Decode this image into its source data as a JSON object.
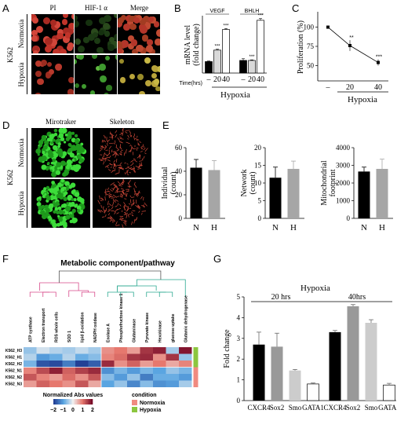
{
  "panels": {
    "A": {
      "letter": "A",
      "col_labels": [
        "PI",
        "HIF-1 α",
        "Merge"
      ],
      "row_labels": [
        "Normoxia",
        "Hypoxia"
      ],
      "group_label": "K562"
    },
    "B": {
      "letter": "B",
      "ylabel": "mRNA level\n(fold change)",
      "ylabel_line1": "mRNA level",
      "ylabel_line2": "(fold change)",
      "group_titles": [
        "VEGF",
        "BHLH"
      ],
      "x_prefix": "Time(hrs)",
      "x_ticks": [
        "–",
        "20",
        "40",
        "–",
        "20",
        "40"
      ],
      "bracket_label": "Hypoxia",
      "star": "***"
    },
    "C": {
      "letter": "C",
      "ylabel": "Proliferation (%)",
      "yticks": [
        "100",
        "75",
        "50"
      ],
      "x_ticks": [
        "–",
        "20",
        "40"
      ],
      "bracket_label": "Hypoxia",
      "stars": [
        "**",
        "***"
      ]
    },
    "D": {
      "letter": "D",
      "col_labels": [
        "Mirotraker",
        "Skeleton"
      ],
      "row_labels": [
        "Normoxia",
        "Hypoxia"
      ],
      "group_label": "K562"
    },
    "E": {
      "letter": "E",
      "subplots": [
        {
          "ylabel": "Individual\n(count)",
          "ylabel_line1": "Individual",
          "ylabel_line2": "(count)",
          "yticks": [
            "0",
            "20",
            "40",
            "60"
          ],
          "x_ticks": [
            "N",
            "H"
          ]
        },
        {
          "ylabel": "Network\n(count)",
          "ylabel_line1": "Network",
          "ylabel_line2": "(count)",
          "yticks": [
            "0",
            "5",
            "10",
            "15",
            "20"
          ],
          "x_ticks": [
            "N",
            "H"
          ]
        },
        {
          "ylabel": "Mitochondrial\nfootprint",
          "ylabel_line1": "Mitochondrial",
          "ylabel_line2": "footprint",
          "yticks": [
            "0",
            "1000",
            "2000",
            "3000",
            "4000"
          ],
          "x_ticks": [
            "N",
            "H"
          ]
        }
      ]
    },
    "F": {
      "letter": "F",
      "title": "Metabolic component/pathway",
      "columns": [
        "ATP synthase",
        "Electron transport",
        "ROS whole cells",
        "SOD 1",
        "lipid β-oxidation",
        "NADPH oxidase",
        "Enolase A",
        "Phosphofructose kinase 1",
        "Glutaminase",
        "Pyruvate kinase",
        "Hexokinase",
        "glucose uptake",
        "Glutamic dehydrogenase"
      ],
      "rows": [
        "K562_H3",
        "K562_H1",
        "K562_H2",
        "K562_N1",
        "K562_N2",
        "K562_N3"
      ],
      "legend_title": "Normalized Abs values",
      "legend_ticks": [
        "−2",
        "−1",
        "0",
        "1",
        "2"
      ],
      "condition_title": "condition",
      "conditions": [
        {
          "name": "Normoxia",
          "color": "#f08a80"
        },
        {
          "name": "Hypoxia",
          "color": "#8cc63f"
        }
      ]
    },
    "G": {
      "letter": "G",
      "title": "Hypoxia",
      "group_labels": [
        "20 hrs",
        "40hrs"
      ],
      "ylabel": "Fold change",
      "yticks": [
        "0",
        "1",
        "2",
        "3",
        "4",
        "5"
      ],
      "x_ticks": [
        "CXCR4",
        "Sox2",
        "Smo",
        "GATA1",
        "CXCR4",
        "Sox2",
        "Smo",
        "GATA1"
      ]
    }
  },
  "chart_data": [
    {
      "panel": "B",
      "type": "bar",
      "title": "",
      "ylabel": "mRNA level (fold change)",
      "categories": [
        "VEGF –",
        "VEGF 20",
        "VEGF 40",
        "BHLH –",
        "BHLH 20",
        "BHLH 40"
      ],
      "values": [
        1.0,
        2.0,
        3.8,
        1.1,
        1.1,
        4.6
      ],
      "errors": [
        0.05,
        0.08,
        0.08,
        0.15,
        0.05,
        0.15
      ],
      "colors": [
        "#000000",
        "#d9d9d9",
        "#ffffff",
        "#000000",
        "#d9d9d9",
        "#ffffff"
      ],
      "ylim": [
        0,
        5
      ]
    },
    {
      "panel": "C",
      "type": "line",
      "title": "",
      "ylabel": "Proliferation (%)",
      "x": [
        "–",
        "20",
        "40"
      ],
      "values": [
        100,
        76,
        54
      ],
      "errors": [
        0,
        7,
        4
      ],
      "ylim": [
        30,
        120
      ]
    },
    {
      "panel": "E1",
      "type": "bar",
      "ylabel": "Individual (count)",
      "categories": [
        "N",
        "H"
      ],
      "values": [
        43,
        41
      ],
      "errors": [
        7,
        8
      ],
      "colors": [
        "#000000",
        "#a6a6a6"
      ],
      "ylim": [
        0,
        60
      ]
    },
    {
      "panel": "E2",
      "type": "bar",
      "ylabel": "Network (count)",
      "categories": [
        "N",
        "H"
      ],
      "values": [
        11.5,
        14
      ],
      "errors": [
        3,
        2.2
      ],
      "colors": [
        "#000000",
        "#a6a6a6"
      ],
      "ylim": [
        0,
        20
      ]
    },
    {
      "panel": "E3",
      "type": "bar",
      "ylabel": "Mitochondrial footprint",
      "categories": [
        "N",
        "H"
      ],
      "values": [
        2650,
        2800
      ],
      "errors": [
        250,
        550
      ],
      "colors": [
        "#000000",
        "#a6a6a6"
      ],
      "ylim": [
        0,
        4000
      ]
    },
    {
      "panel": "F",
      "type": "heatmap",
      "rows": [
        "K562_H3",
        "K562_H1",
        "K562_H2",
        "K562_N1",
        "K562_N2",
        "K562_N3"
      ],
      "values": [
        [
          -0.6,
          -0.2,
          -0.4,
          -0.5,
          -0.3,
          -0.5,
          0.8,
          1.0,
          0.7,
          1.6,
          1.8,
          -0.5,
          1.9
        ],
        [
          -0.4,
          -1.1,
          -0.9,
          -0.4,
          -0.9,
          -0.7,
          0.9,
          1.1,
          1.6,
          1.7,
          0.8,
          1.6,
          -0.6
        ],
        [
          -0.8,
          -1.8,
          -1.9,
          -1.4,
          -2.0,
          -1.7,
          1.7,
          0.8,
          1.2,
          0.7,
          1.0,
          0.6,
          0.9
        ],
        [
          0.9,
          1.4,
          1.8,
          1.2,
          1.5,
          1.7,
          -1.2,
          -0.8,
          -1.1,
          -0.8,
          -1.0,
          -0.6,
          -0.8
        ],
        [
          1.3,
          0.9,
          0.7,
          1.1,
          0.8,
          1.3,
          -0.7,
          -1.1,
          -0.6,
          -1.4,
          -0.9,
          -0.9,
          -1.1
        ],
        [
          0.7,
          1.2,
          1.0,
          0.8,
          1.3,
          0.6,
          -1.0,
          -0.6,
          -1.3,
          -0.7,
          -1.2,
          -1.1,
          -0.5
        ]
      ],
      "conditions": [
        "Hypoxia",
        "Hypoxia",
        "Hypoxia",
        "Normoxia",
        "Normoxia",
        "Normoxia"
      ]
    },
    {
      "panel": "G",
      "type": "bar",
      "title": "Hypoxia",
      "ylabel": "Fold change",
      "categories": [
        "CXCR4",
        "Sox2",
        "Smo",
        "GATA1",
        "CXCR4",
        "Sox2",
        "Smo",
        "GATA1"
      ],
      "values": [
        2.7,
        2.6,
        1.45,
        0.8,
        3.3,
        4.55,
        3.75,
        0.75
      ],
      "errors": [
        0.6,
        0.65,
        0.05,
        0.05,
        0.08,
        0.08,
        0.15,
        0.08
      ],
      "colors": [
        "#000000",
        "#999999",
        "#cccccc",
        "#ffffff",
        "#000000",
        "#999999",
        "#cccccc",
        "#ffffff"
      ],
      "ylim": [
        0,
        5
      ]
    }
  ]
}
